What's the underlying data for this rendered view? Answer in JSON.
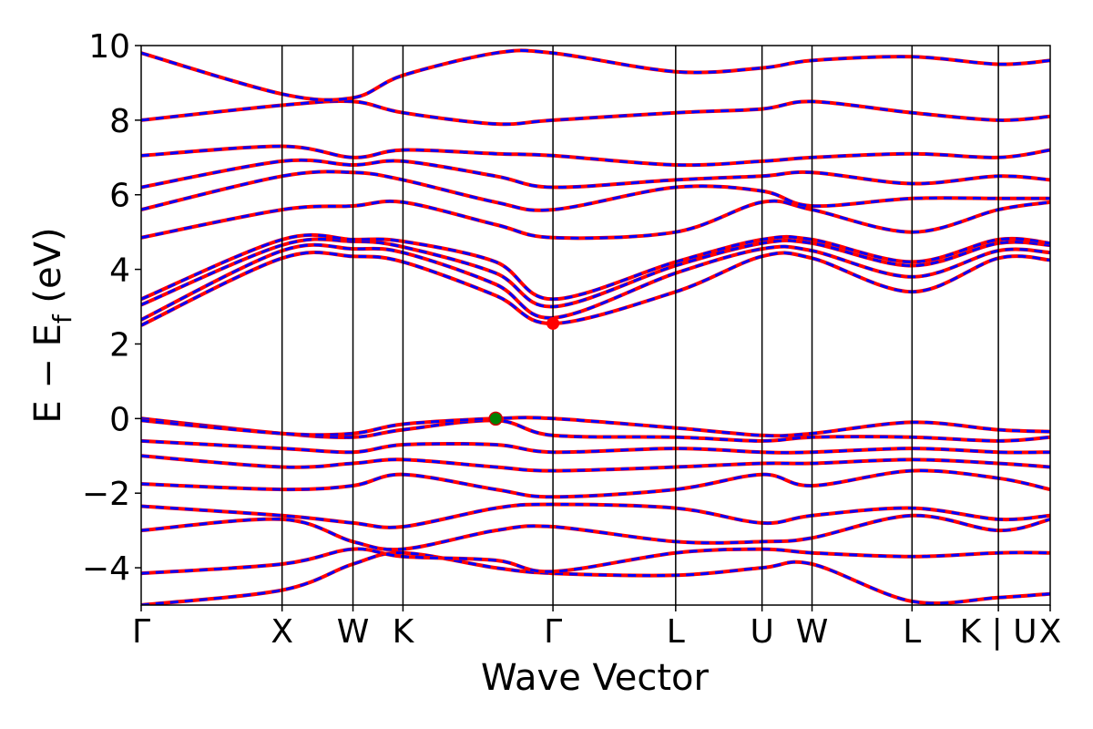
{
  "chart_data": {
    "type": "line",
    "title": "",
    "xlabel": "Wave Vector",
    "ylabel_main": "E − E",
    "ylabel_sub": "f",
    "ylabel_unit": " (eV)",
    "ylim": [
      -5,
      10
    ],
    "yticks": [
      -4,
      -2,
      0,
      2,
      4,
      6,
      8,
      10
    ],
    "ytick_labels": [
      "−4",
      "−2",
      "0",
      "2",
      "4",
      "6",
      "8",
      "10"
    ],
    "grid": false,
    "legend": "none",
    "kpath": [
      {
        "label": "Γ",
        "x": 0.0
      },
      {
        "label": "X",
        "x": 0.155
      },
      {
        "label": "W",
        "x": 0.233
      },
      {
        "label": "K",
        "x": 0.288
      },
      {
        "label": "Γ",
        "x": 0.453
      },
      {
        "label": "L",
        "x": 0.588
      },
      {
        "label": "U",
        "x": 0.683
      },
      {
        "label": "W",
        "x": 0.738
      },
      {
        "label": "L",
        "x": 0.848
      },
      {
        "label": "K | U",
        "x": 0.943
      },
      {
        "label": "X",
        "x": 1.0
      }
    ],
    "band_colors": {
      "spin_up": "#ff0000",
      "spin_down": "#0000ff"
    },
    "vbm": {
      "x": 0.39,
      "y": 0.0,
      "color": "#008000"
    },
    "cbm": {
      "x": 0.453,
      "y": 2.55,
      "color": "#ff0000"
    },
    "bands": [
      {
        "name": "",
        "x": [
          0,
          0.155,
          0.233,
          0.288,
          0.39,
          0.453,
          0.588,
          0.683,
          0.738,
          0.848,
          0.943,
          1.0
        ],
        "y": [
          -5.0,
          -4.6,
          -3.9,
          -3.6,
          -4.0,
          -4.15,
          -4.2,
          -4.0,
          -3.9,
          -4.9,
          -4.8,
          -4.7
        ]
      },
      {
        "name": "",
        "x": [
          0,
          0.155,
          0.233,
          0.288,
          0.39,
          0.453,
          0.588,
          0.683,
          0.738,
          0.848,
          0.943,
          1.0
        ],
        "y": [
          -4.15,
          -3.9,
          -3.5,
          -3.7,
          -3.8,
          -4.1,
          -3.6,
          -3.5,
          -3.6,
          -3.7,
          -3.6,
          -3.6
        ]
      },
      {
        "name": "",
        "x": [
          0,
          0.155,
          0.233,
          0.288,
          0.39,
          0.453,
          0.588,
          0.683,
          0.738,
          0.848,
          0.943,
          1.0
        ],
        "y": [
          -3.0,
          -2.7,
          -3.3,
          -3.5,
          -3.0,
          -2.9,
          -3.3,
          -3.3,
          -3.2,
          -2.6,
          -3.0,
          -2.7
        ]
      },
      {
        "name": "",
        "x": [
          0,
          0.155,
          0.233,
          0.288,
          0.39,
          0.453,
          0.588,
          0.683,
          0.738,
          0.848,
          0.943,
          1.0
        ],
        "y": [
          -2.35,
          -2.6,
          -2.8,
          -2.9,
          -2.4,
          -2.3,
          -2.4,
          -2.8,
          -2.6,
          -2.4,
          -2.7,
          -2.6
        ]
      },
      {
        "name": "",
        "x": [
          0,
          0.155,
          0.233,
          0.288,
          0.39,
          0.453,
          0.588,
          0.683,
          0.738,
          0.848,
          0.943,
          1.0
        ],
        "y": [
          -1.75,
          -1.9,
          -1.8,
          -1.5,
          -1.9,
          -2.1,
          -1.9,
          -1.5,
          -1.8,
          -1.4,
          -1.6,
          -1.9
        ]
      },
      {
        "name": "",
        "x": [
          0,
          0.155,
          0.233,
          0.288,
          0.39,
          0.453,
          0.588,
          0.683,
          0.738,
          0.848,
          0.943,
          1.0
        ],
        "y": [
          -1.0,
          -1.3,
          -1.2,
          -1.1,
          -1.3,
          -1.4,
          -1.3,
          -1.2,
          -1.2,
          -1.1,
          -1.2,
          -1.3
        ]
      },
      {
        "name": "",
        "x": [
          0,
          0.155,
          0.233,
          0.288,
          0.39,
          0.453,
          0.588,
          0.683,
          0.738,
          0.848,
          0.943,
          1.0
        ],
        "y": [
          -0.6,
          -0.8,
          -0.9,
          -0.7,
          -0.7,
          -0.9,
          -0.8,
          -0.9,
          -0.9,
          -0.8,
          -0.9,
          -0.9
        ]
      },
      {
        "name": "",
        "x": [
          0,
          0.155,
          0.233,
          0.288,
          0.39,
          0.453,
          0.588,
          0.683,
          0.738,
          0.848,
          0.943,
          1.0
        ],
        "y": [
          0.0,
          -0.4,
          -0.5,
          -0.3,
          -0.05,
          -0.45,
          -0.5,
          -0.6,
          -0.5,
          -0.5,
          -0.6,
          -0.5
        ]
      },
      {
        "name": "",
        "x": [
          0,
          0.155,
          0.233,
          0.288,
          0.39,
          0.453,
          0.588,
          0.683,
          0.738,
          0.848,
          0.943,
          1.0
        ],
        "y": [
          -0.05,
          -0.4,
          -0.4,
          -0.15,
          0.0,
          0.0,
          -0.25,
          -0.45,
          -0.4,
          -0.1,
          -0.3,
          -0.35
        ]
      },
      {
        "name": "",
        "x": [
          0,
          0.155,
          0.233,
          0.288,
          0.39,
          0.453,
          0.588,
          0.683,
          0.738,
          0.848,
          0.943,
          1.0
        ],
        "y": [
          2.5,
          4.3,
          4.35,
          4.2,
          3.3,
          2.55,
          3.4,
          4.35,
          4.3,
          3.4,
          4.3,
          4.25
        ]
      },
      {
        "name": "",
        "x": [
          0,
          0.155,
          0.233,
          0.288,
          0.39,
          0.453,
          0.588,
          0.683,
          0.738,
          0.848,
          0.943,
          1.0
        ],
        "y": [
          2.65,
          4.5,
          4.55,
          4.45,
          3.6,
          2.7,
          3.9,
          4.55,
          4.5,
          3.8,
          4.5,
          4.45
        ]
      },
      {
        "name": "",
        "x": [
          0,
          0.155,
          0.233,
          0.288,
          0.39,
          0.453,
          0.588,
          0.683,
          0.738,
          0.848,
          0.943,
          1.0
        ],
        "y": [
          3.05,
          4.65,
          4.75,
          4.6,
          3.9,
          3.0,
          4.1,
          4.7,
          4.7,
          4.1,
          4.7,
          4.65
        ]
      },
      {
        "name": "",
        "x": [
          0,
          0.155,
          0.233,
          0.288,
          0.39,
          0.453,
          0.588,
          0.683,
          0.738,
          0.848,
          0.943,
          1.0
        ],
        "y": [
          3.2,
          4.8,
          4.8,
          4.75,
          4.2,
          3.2,
          4.2,
          4.8,
          4.8,
          4.2,
          4.8,
          4.7
        ]
      },
      {
        "name": "",
        "x": [
          0,
          0.155,
          0.233,
          0.288,
          0.39,
          0.453,
          0.588,
          0.683,
          0.738,
          0.848,
          0.943,
          1.0
        ],
        "y": [
          4.85,
          5.6,
          5.7,
          5.8,
          5.2,
          4.85,
          5.0,
          5.8,
          5.6,
          5.0,
          5.6,
          5.8
        ]
      },
      {
        "name": "",
        "x": [
          0,
          0.155,
          0.233,
          0.288,
          0.39,
          0.453,
          0.588,
          0.683,
          0.738,
          0.848,
          0.943,
          1.0
        ],
        "y": [
          5.6,
          6.5,
          6.6,
          6.4,
          5.8,
          5.6,
          6.2,
          6.1,
          5.7,
          5.9,
          5.9,
          5.9
        ]
      },
      {
        "name": "",
        "x": [
          0,
          0.155,
          0.233,
          0.288,
          0.39,
          0.453,
          0.588,
          0.683,
          0.738,
          0.848,
          0.943,
          1.0
        ],
        "y": [
          6.2,
          6.9,
          6.8,
          6.9,
          6.5,
          6.2,
          6.4,
          6.5,
          6.6,
          6.3,
          6.5,
          6.4
        ]
      },
      {
        "name": "",
        "x": [
          0,
          0.155,
          0.233,
          0.288,
          0.39,
          0.453,
          0.588,
          0.683,
          0.738,
          0.848,
          0.943,
          1.0
        ],
        "y": [
          7.05,
          7.3,
          7.0,
          7.2,
          7.1,
          7.05,
          6.8,
          6.9,
          7.0,
          7.1,
          7.0,
          7.2
        ]
      },
      {
        "name": "",
        "x": [
          0,
          0.155,
          0.233,
          0.288,
          0.39,
          0.453,
          0.588,
          0.683,
          0.738,
          0.848,
          0.943,
          1.0
        ],
        "y": [
          8.0,
          8.4,
          8.5,
          8.2,
          7.9,
          8.0,
          8.2,
          8.3,
          8.5,
          8.2,
          8.0,
          8.1
        ]
      },
      {
        "name": "",
        "x": [
          0,
          0.155,
          0.233,
          0.288,
          0.39,
          0.453,
          0.588,
          0.683,
          0.738,
          0.848,
          0.943,
          1.0
        ],
        "y": [
          9.8,
          8.7,
          8.6,
          9.2,
          9.8,
          9.8,
          9.3,
          9.4,
          9.6,
          9.7,
          9.5,
          9.6
        ]
      }
    ]
  }
}
